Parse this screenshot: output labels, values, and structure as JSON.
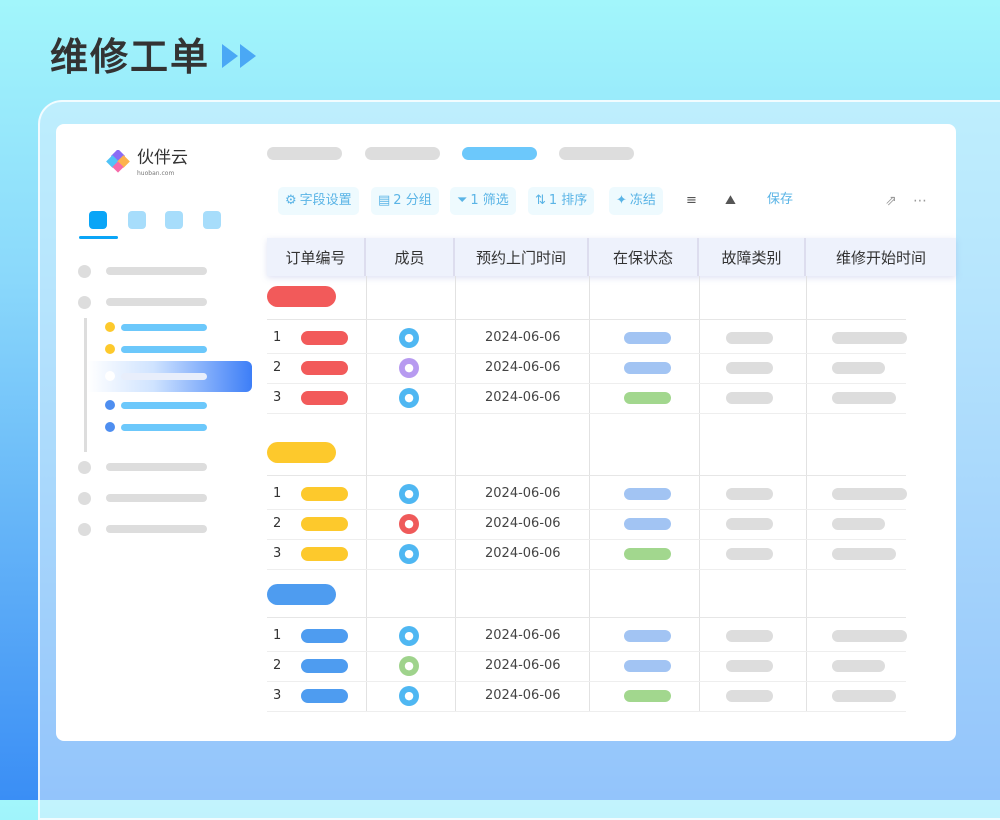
{
  "page_title": "维修工单",
  "logo": {
    "name": "伙伴云",
    "sub": "huoban.com"
  },
  "toolbar": {
    "field_settings": "字段设置",
    "group": "2 分组",
    "filter": "1 筛选",
    "sort": "1 排序",
    "freeze": "冻结",
    "save": "保存"
  },
  "columns": [
    "订单编号",
    "成员",
    "预约上门时间",
    "在保状态",
    "故障类别",
    "维修开始时间"
  ],
  "colors": {
    "red": "#f25a5a",
    "yellow": "#fdc92c",
    "blue": "#4e9cf0",
    "status_blue": "#a2c4f3",
    "status_green": "#a2d78e",
    "accent": "#0aa5f7"
  },
  "groups": [
    {
      "color": "#f25a5a",
      "rows": [
        {
          "no": "1",
          "avatar": "#4fb7f2",
          "date": "2024-06-06",
          "status": "#a2c4f3"
        },
        {
          "no": "2",
          "avatar": "#b79af0",
          "date": "2024-06-06",
          "status": "#a2c4f3"
        },
        {
          "no": "3",
          "avatar": "#4fb7f2",
          "date": "2024-06-06",
          "status": "#a2d78e"
        }
      ]
    },
    {
      "color": "#fdc92c",
      "rows": [
        {
          "no": "1",
          "avatar": "#4fb7f2",
          "date": "2024-06-06",
          "status": "#a2c4f3"
        },
        {
          "no": "2",
          "avatar": "#ef5a5a",
          "date": "2024-06-06",
          "status": "#a2c4f3"
        },
        {
          "no": "3",
          "avatar": "#4fb7f2",
          "date": "2024-06-06",
          "status": "#a2d78e"
        }
      ]
    },
    {
      "color": "#4e9cf0",
      "rows": [
        {
          "no": "1",
          "avatar": "#4fb7f2",
          "date": "2024-06-06",
          "status": "#a2c4f3"
        },
        {
          "no": "2",
          "avatar": "#9fd38c",
          "date": "2024-06-06",
          "status": "#a2c4f3"
        },
        {
          "no": "3",
          "avatar": "#4fb7f2",
          "date": "2024-06-06",
          "status": "#a2d78e"
        }
      ]
    }
  ]
}
